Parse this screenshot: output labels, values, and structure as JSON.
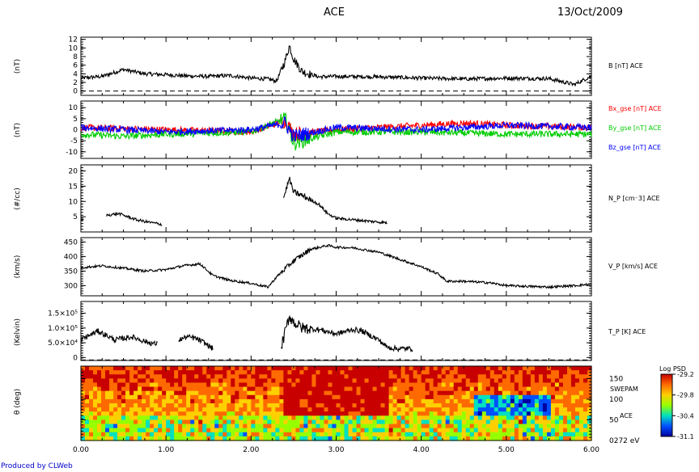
{
  "header": {
    "title": "ACE",
    "date": "13/Oct/2009"
  },
  "footer": {
    "credit": "Produced by CLWeb"
  },
  "colorbar": {
    "title": "Log PSD",
    "ticks": [
      "-29.2",
      "-29.8",
      "-30.4",
      "-31.1"
    ],
    "colors": [
      "#c80000",
      "#ff6a00",
      "#ffd000",
      "#96ff00",
      "#00e0c0",
      "#0050ff",
      "#0000a0"
    ]
  },
  "chart_data": [
    {
      "type": "line",
      "panel": "B",
      "ylabel": "(nT)",
      "ylim": [
        -1,
        12.5
      ],
      "yticks": [
        "0",
        "2",
        "4",
        "6",
        "8",
        "10",
        "12"
      ],
      "ytick_values": [
        0,
        2,
        4,
        6,
        8,
        10,
        12
      ],
      "series": [
        {
          "name": "B [nT] ACE",
          "color": "#000000",
          "x": [
            0.0,
            0.25,
            0.5,
            0.75,
            1.0,
            1.25,
            1.5,
            1.75,
            2.0,
            2.2,
            2.3,
            2.4,
            2.45,
            2.5,
            2.6,
            2.8,
            3.0,
            3.5,
            4.0,
            4.5,
            5.0,
            5.5,
            5.8,
            6.0
          ],
          "y": [
            3.0,
            3.4,
            5.0,
            4.0,
            3.8,
            3.5,
            3.4,
            3.6,
            3.0,
            2.8,
            2.3,
            7.0,
            10.5,
            7.5,
            4.5,
            3.3,
            3.4,
            3.3,
            3.0,
            2.8,
            3.0,
            2.9,
            1.5,
            3.5
          ]
        }
      ],
      "noise": 0.9
    },
    {
      "type": "line",
      "panel": "Bgse",
      "ylabel": "(nT)",
      "ylim": [
        -13,
        13
      ],
      "yticks": [
        "-10",
        "-5",
        "0",
        "5",
        "10"
      ],
      "ytick_values": [
        -10,
        -5,
        0,
        5,
        10
      ],
      "series": [
        {
          "name": "Bx_gse [nT] ACE",
          "color": "#ff0000",
          "x": [
            0,
            1,
            2,
            2.4,
            2.5,
            3,
            4,
            4.5,
            5,
            6
          ],
          "y": [
            1,
            0,
            -1,
            4,
            -2,
            0,
            2,
            3,
            2,
            1
          ]
        },
        {
          "name": "By_gse [nT] ACE",
          "color": "#00cc00",
          "x": [
            0,
            0.5,
            1,
            2,
            2.4,
            2.5,
            3,
            4,
            5,
            6
          ],
          "y": [
            -2,
            -3,
            -2,
            -1,
            5,
            -6,
            -1,
            -1,
            -2,
            -2
          ]
        },
        {
          "name": "Bz_gse [nT] ACE",
          "color": "#0000ff",
          "x": [
            0,
            1,
            2,
            2.4,
            2.5,
            3,
            4,
            5,
            6
          ],
          "y": [
            1,
            -1,
            0,
            3,
            -3,
            1,
            0,
            2,
            1
          ]
        }
      ],
      "noise": 3.0
    },
    {
      "type": "line",
      "panel": "NP",
      "ylabel": "(#/cc)",
      "ylim": [
        0,
        22
      ],
      "yticks": [
        "5",
        "10",
        "15",
        "20"
      ],
      "ytick_values": [
        5,
        10,
        15,
        20
      ],
      "series": [
        {
          "name": "N_P [cm⁻3] ACE",
          "color": "#000000",
          "segments": [
            {
              "x": [
                0.0,
                0.03
              ],
              "y": [
                4.0,
                4.0
              ]
            },
            {
              "x": [
                0.3,
                0.45,
                0.55,
                0.65,
                0.8,
                0.95
              ],
              "y": [
                5.5,
                6.0,
                5.0,
                4.0,
                3.2,
                2.5
              ]
            },
            {
              "x": [
                2.38,
                2.45,
                2.5,
                2.6,
                2.7,
                2.8,
                2.9,
                3.0,
                3.2,
                3.4,
                3.6
              ],
              "y": [
                11.0,
                17.5,
                13.0,
                12.0,
                10.5,
                9.0,
                6.0,
                4.5,
                4.0,
                3.5,
                3.0
              ]
            }
          ]
        }
      ],
      "noise": 0.9
    },
    {
      "type": "line",
      "panel": "VP",
      "ylabel": "(km/s)",
      "ylim": [
        265,
        465
      ],
      "yticks": [
        "300",
        "350",
        "400",
        "450"
      ],
      "ytick_values": [
        300,
        350,
        400,
        450
      ],
      "series": [
        {
          "name": "V_P [km/s] ACE",
          "color": "#000000",
          "x": [
            0.0,
            0.25,
            0.5,
            0.75,
            1.0,
            1.2,
            1.4,
            1.55,
            1.75,
            2.0,
            2.2,
            2.3,
            2.5,
            2.7,
            2.9,
            3.0,
            3.2,
            3.5,
            3.8,
            4.0,
            4.2,
            4.3,
            4.5,
            4.8,
            5.0,
            5.2,
            5.5,
            5.8,
            6.0
          ],
          "y": [
            362,
            368,
            360,
            350,
            355,
            368,
            375,
            335,
            318,
            308,
            295,
            330,
            385,
            425,
            438,
            432,
            430,
            415,
            385,
            365,
            340,
            315,
            315,
            310,
            300,
            298,
            295,
            300,
            305
          ]
        }
      ],
      "noise": 8
    },
    {
      "type": "line",
      "panel": "TP",
      "ylabel": "(Kelvin)",
      "ylim": [
        -10000,
        190000
      ],
      "yticks": [
        "0",
        "5.0×10⁴",
        "1.0×10⁵",
        "1.5×10⁵"
      ],
      "ytick_values": [
        0,
        50000,
        100000,
        150000
      ],
      "series": [
        {
          "name": "T_P [K] ACE",
          "color": "#000000",
          "segments": [
            {
              "x": [
                0.0,
                0.2,
                0.4,
                0.6,
                0.8,
                0.9
              ],
              "y": [
                60000,
                90000,
                60000,
                70000,
                50000,
                45000
              ]
            },
            {
              "x": [
                1.15,
                1.25,
                1.35,
                1.45,
                1.55
              ],
              "y": [
                60000,
                70000,
                65000,
                50000,
                30000
              ]
            },
            {
              "x": [
                2.35,
                2.45,
                2.5,
                2.6,
                2.8,
                3.0,
                3.2,
                3.3,
                3.5,
                3.6,
                3.7,
                3.8,
                3.9
              ],
              "y": [
                30000,
                140000,
                120000,
                100000,
                95000,
                80000,
                95000,
                90000,
                60000,
                35000,
                30000,
                30000,
                30000
              ]
            }
          ]
        }
      ],
      "noise": 18000
    },
    {
      "type": "heatmap",
      "panel": "SWEPAM",
      "ylabel": "θ (deg)",
      "ylim": [
        0,
        180
      ],
      "yticks": [
        "150",
        "100",
        "50",
        "0272 eV"
      ],
      "ytick_values": [
        150,
        100,
        50,
        0
      ],
      "annotations": [
        "SWEPAM",
        "ACE"
      ],
      "xlim": [
        0,
        6
      ],
      "xticks": [
        "0.00",
        "1.00",
        "2.00",
        "3.00",
        "4.00",
        "5.00",
        "6.00"
      ],
      "colorbar_range": [
        -31.1,
        -29.2
      ]
    }
  ],
  "x_axis": {
    "min": 0,
    "max": 6,
    "ticks": [
      "0.00",
      "1.00",
      "2.00",
      "3.00",
      "4.00",
      "5.00",
      "6.00"
    ]
  }
}
